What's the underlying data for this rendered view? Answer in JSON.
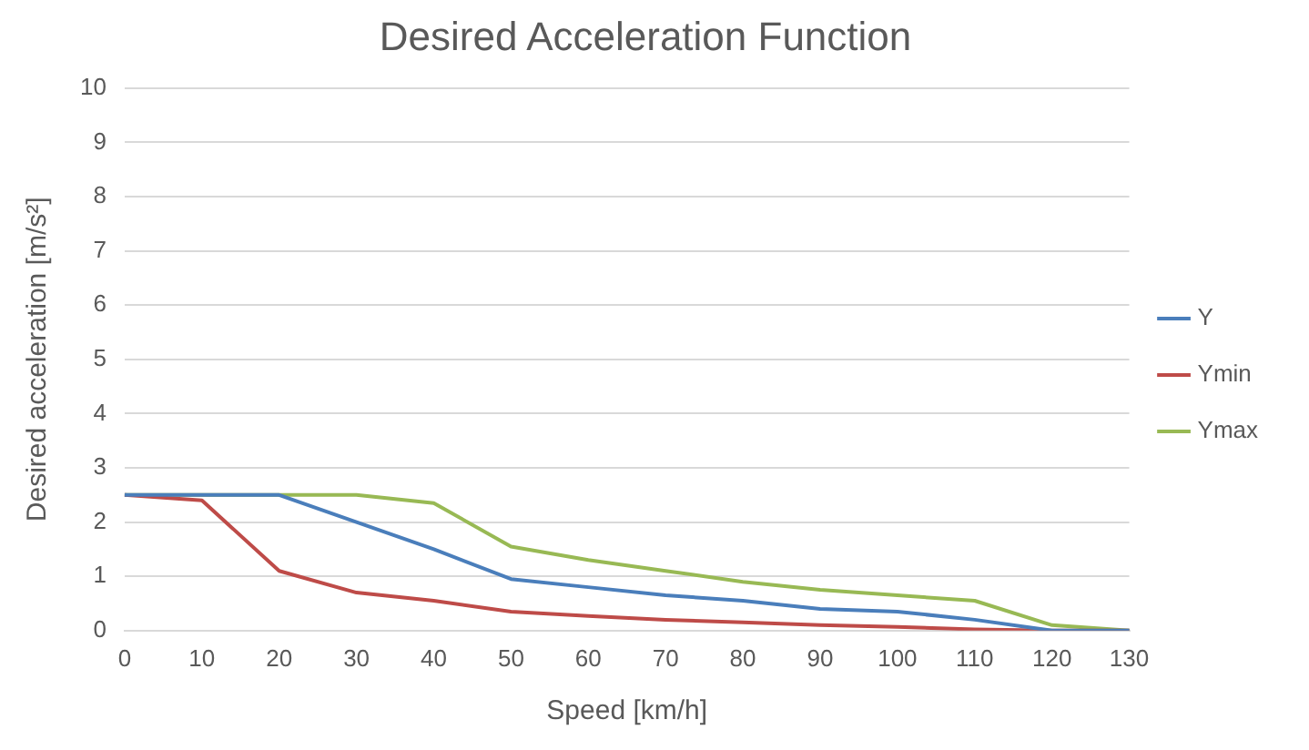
{
  "chart_data": {
    "type": "line",
    "title": "Desired Acceleration Function",
    "xlabel": "Speed [km/h]",
    "ylabel": "Desired acceleration [m/s²]",
    "categories": [
      "0",
      "10",
      "20",
      "30",
      "40",
      "50",
      "60",
      "70",
      "80",
      "90",
      "100",
      "110",
      "120",
      "130"
    ],
    "series": [
      {
        "name": "Y",
        "color": "#4a7ebb",
        "values": [
          2.5,
          2.5,
          2.5,
          2.0,
          1.5,
          0.95,
          0.8,
          0.65,
          0.55,
          0.4,
          0.35,
          0.2,
          0,
          0
        ]
      },
      {
        "name": "Ymin",
        "color": "#be4b48",
        "values": [
          2.5,
          2.4,
          1.1,
          0.7,
          0.55,
          0.35,
          0.27,
          0.2,
          0.15,
          0.1,
          0.07,
          0.02,
          0,
          0
        ]
      },
      {
        "name": "Ymax",
        "color": "#98b954",
        "values": [
          2.5,
          2.5,
          2.5,
          2.5,
          2.35,
          1.55,
          1.3,
          1.1,
          0.9,
          0.75,
          0.65,
          0.55,
          0.1,
          0
        ]
      }
    ],
    "ylim": [
      0,
      10
    ],
    "yticks": [
      0,
      1,
      2,
      3,
      4,
      5,
      6,
      7,
      8,
      9,
      10
    ],
    "grid": "y",
    "legend": "right",
    "marker": "none",
    "line_style": "solid"
  }
}
